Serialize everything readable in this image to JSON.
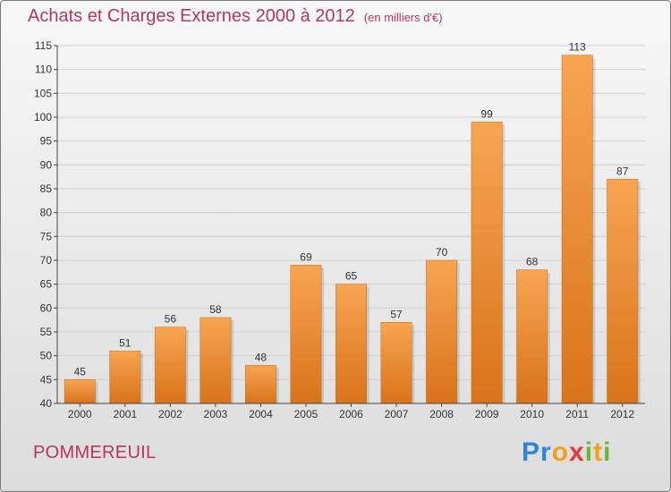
{
  "header": {
    "title": "Achats et Charges Externes 2000 à 2012",
    "subtitle": "(en milliers d'€)"
  },
  "footer": {
    "location": "POMMEREUIL",
    "logo_text": "Proxiti"
  },
  "colors": {
    "title": "#b5375d",
    "bar_top": "#f7a552",
    "bar_bottom": "#d9731a",
    "grid": "#cfcfcf",
    "axis": "#444444"
  },
  "chart_data": {
    "type": "bar",
    "categories": [
      "2000",
      "2001",
      "2002",
      "2003",
      "2004",
      "2005",
      "2006",
      "2007",
      "2008",
      "2009",
      "2010",
      "2011",
      "2012"
    ],
    "values": [
      45,
      51,
      56,
      58,
      48,
      69,
      65,
      57,
      70,
      99,
      68,
      113,
      87
    ],
    "ylim": [
      40,
      115
    ],
    "yticks": [
      40,
      45,
      50,
      55,
      60,
      65,
      70,
      75,
      80,
      85,
      90,
      95,
      100,
      105,
      110,
      115
    ],
    "grid": true,
    "data_labels": true
  }
}
